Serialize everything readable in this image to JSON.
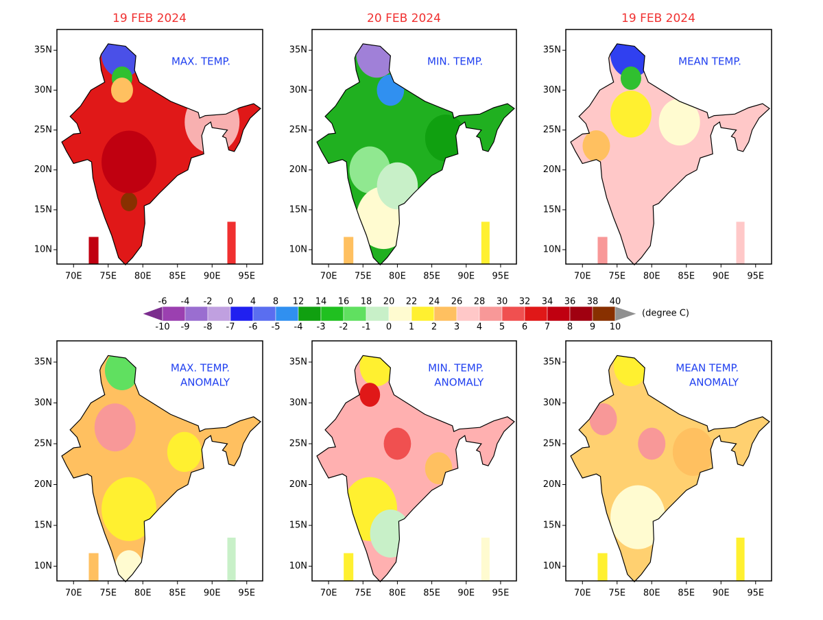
{
  "panels": [
    {
      "date": "19 FEB 2024",
      "label": [
        "MAX. TEMP."
      ]
    },
    {
      "date": "20 FEB 2024",
      "label": [
        "MIN. TEMP."
      ]
    },
    {
      "date": "19 FEB 2024",
      "label": [
        "MEAN TEMP."
      ]
    },
    {
      "label": [
        "MAX. TEMP.",
        "ANOMALY"
      ]
    },
    {
      "label": [
        "MIN. TEMP.",
        "ANOMALY"
      ]
    },
    {
      "label": [
        "MEAN TEMP.",
        "ANOMALY"
      ]
    }
  ],
  "map_axes": {
    "lon_range": [
      67.6,
      97.3
    ],
    "lat_range": [
      8.2,
      37.6
    ],
    "lon_ticks": [
      {
        "value": 70,
        "label": "70E"
      },
      {
        "value": 75,
        "label": "75E"
      },
      {
        "value": 80,
        "label": "80E"
      },
      {
        "value": 85,
        "label": "85E"
      },
      {
        "value": 90,
        "label": "90E"
      },
      {
        "value": 95,
        "label": "95E"
      }
    ],
    "lat_ticks": [
      {
        "value": 10,
        "label": "10N"
      },
      {
        "value": 15,
        "label": "15N"
      },
      {
        "value": 20,
        "label": "20N"
      },
      {
        "value": 25,
        "label": "25N"
      },
      {
        "value": 30,
        "label": "30N"
      },
      {
        "value": 35,
        "label": "35N"
      }
    ]
  },
  "colorbar": {
    "unit": "(degree C)",
    "absolute_labels": [
      -6,
      -4,
      -2,
      0,
      4,
      8,
      12,
      14,
      16,
      18,
      20,
      22,
      24,
      26,
      28,
      30,
      32,
      34,
      36,
      38,
      40
    ],
    "anomaly_labels": [
      -10,
      -9,
      -8,
      -7,
      -6,
      -5,
      -4,
      -3,
      -2,
      -1,
      0,
      1,
      2,
      3,
      4,
      5,
      6,
      7,
      8,
      9,
      10
    ],
    "colors": [
      "#7b2d8e",
      "#9b40b0",
      "#9a6ed0",
      "#c0a0e0",
      "#2020f0",
      "#5a6ef0",
      "#3090f0",
      "#10a010",
      "#20c020",
      "#60e060",
      "#c8f0c8",
      "#fffbd0",
      "#fff030",
      "#ffc060",
      "#ffc8c8",
      "#f89898",
      "#f05050",
      "#e01818",
      "#c00010",
      "#a00010",
      "#883000",
      "#909090"
    ]
  }
}
